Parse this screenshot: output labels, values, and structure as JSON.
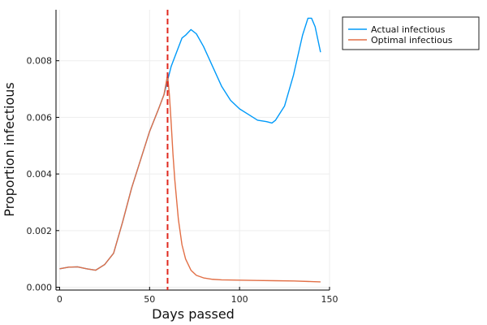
{
  "chart_data": {
    "type": "line",
    "title": "",
    "xlabel": "Days passed",
    "ylabel": "Proportion infectious",
    "xlim": [
      -2,
      150
    ],
    "ylim": [
      -0.0001,
      0.0098
    ],
    "xticks": [
      0,
      50,
      100,
      150
    ],
    "xtick_labels": [
      "0",
      "50",
      "100",
      "150"
    ],
    "yticks": [
      0.0,
      0.002,
      0.004,
      0.006,
      0.008
    ],
    "ytick_labels": [
      "0.000",
      "0.002",
      "0.004",
      "0.006",
      "0.008"
    ],
    "grid": true,
    "legend_position": "top-right (outside plot)",
    "vline": {
      "x": 60,
      "color": "#e0281e",
      "style": "dashed"
    },
    "series": [
      {
        "name": "Actual infectious",
        "color": "#009af9",
        "x": [
          0,
          5,
          10,
          15,
          20,
          25,
          30,
          35,
          40,
          45,
          50,
          55,
          58,
          60,
          62,
          65,
          68,
          70,
          73,
          76,
          80,
          85,
          90,
          95,
          100,
          105,
          110,
          115,
          118,
          120,
          125,
          130,
          135,
          138,
          140,
          142,
          145
        ],
        "y": [
          0.00065,
          0.00071,
          0.00072,
          0.00065,
          0.0006,
          0.0008,
          0.0012,
          0.0023,
          0.0035,
          0.0045,
          0.0055,
          0.0063,
          0.0068,
          0.0073,
          0.0078,
          0.0083,
          0.0088,
          0.0089,
          0.0091,
          0.00895,
          0.0085,
          0.0078,
          0.0071,
          0.0066,
          0.0063,
          0.0061,
          0.0059,
          0.00585,
          0.0058,
          0.0059,
          0.0064,
          0.0075,
          0.0089,
          0.0095,
          0.0095,
          0.0092,
          0.0083
        ]
      },
      {
        "name": "Optimal infectious",
        "color": "#e26f46",
        "x": [
          0,
          5,
          10,
          15,
          20,
          25,
          30,
          35,
          40,
          45,
          50,
          55,
          58,
          60,
          61,
          62,
          63,
          64,
          66,
          68,
          70,
          73,
          76,
          80,
          85,
          90,
          100,
          110,
          120,
          130,
          140,
          145
        ],
        "y": [
          0.00065,
          0.00071,
          0.00072,
          0.00065,
          0.0006,
          0.0008,
          0.0012,
          0.0023,
          0.0035,
          0.0045,
          0.0055,
          0.0063,
          0.0068,
          0.0075,
          0.0068,
          0.0058,
          0.0047,
          0.0038,
          0.0024,
          0.0015,
          0.001,
          0.0006,
          0.00042,
          0.00033,
          0.00028,
          0.00026,
          0.00025,
          0.00024,
          0.00023,
          0.00022,
          0.0002,
          0.00019
        ]
      }
    ]
  }
}
